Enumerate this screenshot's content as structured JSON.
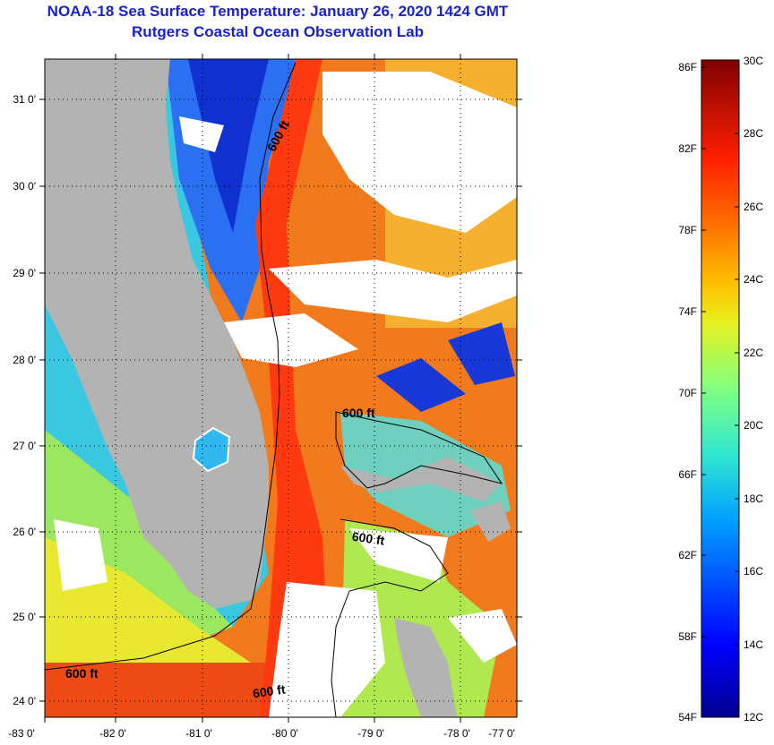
{
  "title": {
    "line1": "NOAA-18 Sea Surface Temperature:  January 26, 2020 1424 GMT",
    "line2": "Rutgers Coastal Ocean Observation Lab"
  },
  "map": {
    "lat_labels": [
      "31 0'",
      "30 0'",
      "29 0'",
      "28 0'",
      "27 0'",
      "26 0'",
      "25 0'",
      "24 0'"
    ],
    "lon_labels": [
      "-83 0'",
      "-82 0'",
      "-81 0'",
      "-80 0'",
      "-79 0'",
      "-78 0'",
      "-77 0'"
    ],
    "depth_labels": [
      "600 ft",
      "600 ft",
      "600 ft",
      "600 ft",
      "600 ft"
    ]
  },
  "colorbar": {
    "fahrenheit_labels": [
      "86F",
      "82F",
      "78F",
      "74F",
      "70F",
      "66F",
      "62F",
      "58F",
      "54F"
    ],
    "celsius_labels": [
      "30C",
      "28C",
      "26C",
      "24C",
      "22C",
      "20C",
      "18C",
      "16C",
      "14C",
      "12C"
    ]
  },
  "colors": {
    "title": "#1a22c8",
    "land": "#b3b3b3",
    "cloud": "#ffffff"
  }
}
